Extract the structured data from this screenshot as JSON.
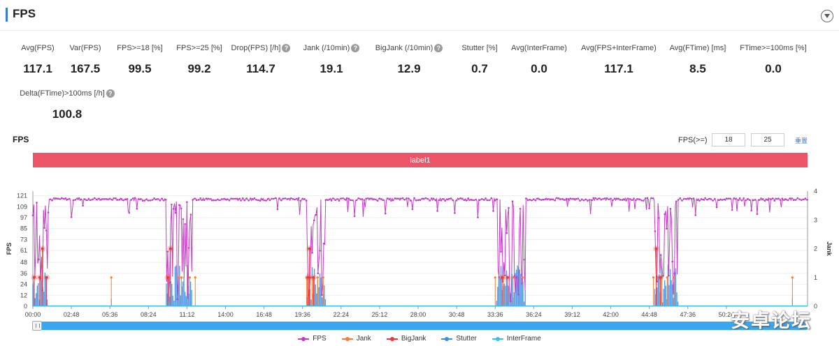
{
  "page": {
    "title": "FPS"
  },
  "metrics": [
    {
      "label": "Avg(FPS)",
      "value": "117.1",
      "help": false
    },
    {
      "label": "Var(FPS)",
      "value": "167.5",
      "help": false
    },
    {
      "label": "FPS>=18 [%]",
      "value": "99.5",
      "help": false
    },
    {
      "label": "FPS>=25 [%]",
      "value": "99.2",
      "help": false
    },
    {
      "label": "Drop(FPS) [/h]",
      "value": "114.7",
      "help": true
    },
    {
      "label": "Jank (/10min)",
      "value": "19.1",
      "help": true
    },
    {
      "label": "BigJank (/10min)",
      "value": "12.9",
      "help": true
    },
    {
      "label": "Stutter [%]",
      "value": "0.7",
      "help": false
    },
    {
      "label": "Avg(InterFrame)",
      "value": "0.0",
      "help": false
    },
    {
      "label": "Avg(FPS+InterFrame)",
      "value": "117.1",
      "help": false
    },
    {
      "label": "Avg(FTime) [ms]",
      "value": "8.5",
      "help": false
    },
    {
      "label": "FTime>=100ms [%]",
      "value": "0.0",
      "help": false
    },
    {
      "label": "Delta(FTime)>100ms [/h]",
      "value": "100.8",
      "help": true
    }
  ],
  "help_glyph": "?",
  "chart_section": {
    "title": "FPS",
    "threshold_label": "FPS(>=)",
    "threshold_low": "18",
    "threshold_high": "25",
    "reset_label": "重置",
    "band_label": "label1"
  },
  "chart_data": {
    "type": "line",
    "title": "",
    "ylabel": "FPS",
    "y2label": "Jank",
    "x_ticks": [
      "00:00",
      "02:48",
      "05:36",
      "08:24",
      "11:12",
      "14:00",
      "16:48",
      "19:36",
      "22:24",
      "25:12",
      "28:00",
      "30:48",
      "33:36",
      "36:24",
      "39:12",
      "42:00",
      "44:48",
      "47:36",
      "50:24"
    ],
    "y_ticks": [
      0,
      12,
      24,
      36,
      48,
      61,
      73,
      85,
      97,
      109,
      121
    ],
    "y_range": [
      0,
      126
    ],
    "y2_ticks": [
      0,
      1,
      2,
      3,
      4
    ],
    "y2_range": [
      0,
      4
    ],
    "x_range_min": [
      0,
      56.3
    ],
    "fps_baseline": 117,
    "frame_drop_windows_min": [
      {
        "start": 0.0,
        "end": 1.1
      },
      {
        "start": 9.7,
        "end": 11.6
      },
      {
        "start": 19.9,
        "end": 21.3
      },
      {
        "start": 33.7,
        "end": 35.8
      },
      {
        "start": 45.2,
        "end": 46.9
      }
    ],
    "bigjank_markers": [
      {
        "t": 0.1,
        "jank": 1
      },
      {
        "t": 0.5,
        "jank": 1
      },
      {
        "t": 0.7,
        "jank": 2
      },
      {
        "t": 1.0,
        "jank": 1
      },
      {
        "t": 9.8,
        "jank": 1
      },
      {
        "t": 10.0,
        "jank": 2
      },
      {
        "t": 20.0,
        "jank": 1
      },
      {
        "t": 20.1,
        "jank": 2
      },
      {
        "t": 20.4,
        "jank": 1
      },
      {
        "t": 34.1,
        "jank": 1
      },
      {
        "t": 34.5,
        "jank": 1
      },
      {
        "t": 45.3,
        "jank": 2
      },
      {
        "t": 45.6,
        "jank": 1
      }
    ],
    "jank_spikes_min": [
      5.7,
      9.9,
      10.6,
      10.8,
      11.4,
      11.8,
      19.9,
      20.3,
      20.7,
      21.1,
      33.6,
      34.2,
      34.9,
      35.6,
      45.1,
      45.7,
      46.1,
      46.6,
      55.2
    ],
    "series": [
      {
        "name": "FPS",
        "color": "#c03fc1"
      },
      {
        "name": "Jank",
        "color": "#f0803a"
      },
      {
        "name": "BigJank",
        "color": "#e83a3a"
      },
      {
        "name": "Stutter",
        "color": "#3a8ee6"
      },
      {
        "name": "InterFrame",
        "color": "#35c2f0"
      }
    ],
    "grid": true,
    "legend_position": "bottom"
  },
  "watermark": "安卓论坛",
  "icons": {
    "collapse": "chevron-down-icon",
    "help": "help-circle-icon",
    "scroll_handle": "grip-icon"
  }
}
